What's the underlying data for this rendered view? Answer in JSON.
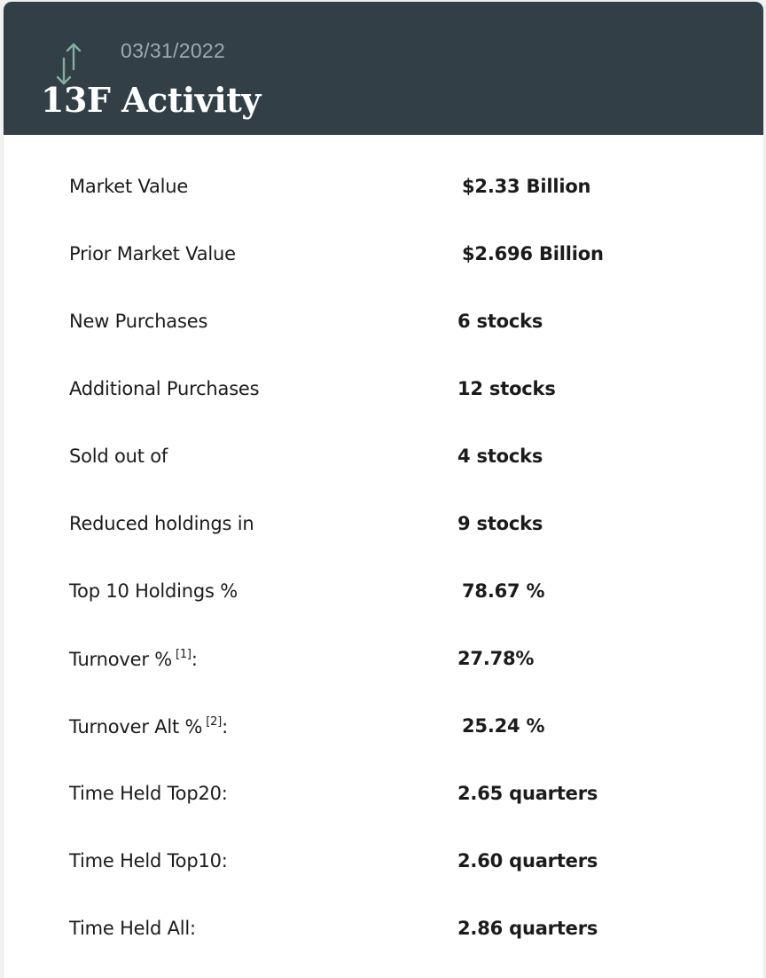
{
  "header": {
    "date": "03/31/2022",
    "title": "13F Activity",
    "icon": "up-down-arrows-icon",
    "background_color": "#333f47",
    "icon_color": "#7fb0a0"
  },
  "stats": [
    {
      "label": "Market Value",
      "value": "$2.33 Billion"
    },
    {
      "label": "Prior Market Value",
      "value": "$2.696 Billion"
    },
    {
      "label": "New Purchases",
      "value": "6 stocks"
    },
    {
      "label": "Additional Purchases",
      "value": "12 stocks"
    },
    {
      "label": "Sold out of",
      "value": "4 stocks"
    },
    {
      "label": "Reduced holdings in",
      "value": "9 stocks"
    },
    {
      "label": "Top 10 Holdings %",
      "value": "78.67 %"
    },
    {
      "label": "Turnover %",
      "ref": "[1]",
      "suffix": ":",
      "value": "27.78%"
    },
    {
      "label": "Turnover Alt %",
      "ref": "[2]",
      "suffix": ":",
      "value": "25.24 %"
    },
    {
      "label": "Time Held Top20:",
      "value": "2.65 quarters"
    },
    {
      "label": "Time Held Top10:",
      "value": "2.60 quarters"
    },
    {
      "label": "Time Held All:",
      "value": "2.86 quarters"
    }
  ]
}
